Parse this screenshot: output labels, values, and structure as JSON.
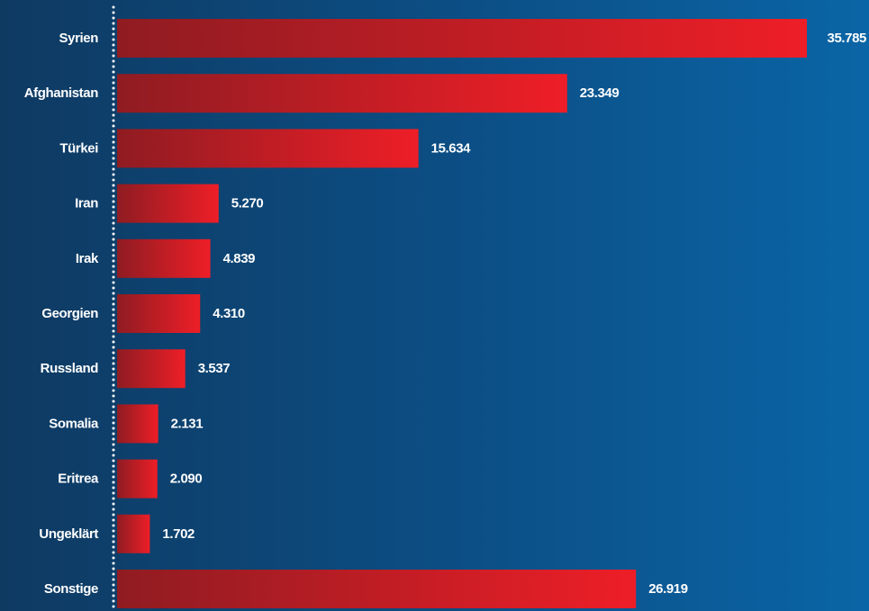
{
  "chart_data": {
    "type": "bar",
    "orientation": "horizontal",
    "categories": [
      "Syrien",
      "Afghanistan",
      "Türkei",
      "Iran",
      "Irak",
      "Georgien",
      "Russland",
      "Somalia",
      "Eritrea",
      "Ungeklärt",
      "Sonstige"
    ],
    "values": [
      35785,
      23349,
      15634,
      5270,
      4839,
      4310,
      3537,
      2131,
      2090,
      1702,
      26919
    ],
    "value_labels": [
      "35.785",
      "23.349",
      "15.634",
      "5.270",
      "4.839",
      "4.310",
      "3.537",
      "2.131",
      "2.090",
      "1.702",
      "26.919"
    ],
    "title": "",
    "xlabel": "",
    "ylabel": "",
    "xlim": [
      0,
      35785
    ],
    "grid": false,
    "legend": "none",
    "colors": {
      "bar_start": "#8f1c22",
      "bar_end": "#ee1e27",
      "text": "#ffffff",
      "axis_dots": "#ffffff",
      "background_left": "#0e3a62",
      "background_right": "#0a65a6"
    }
  }
}
